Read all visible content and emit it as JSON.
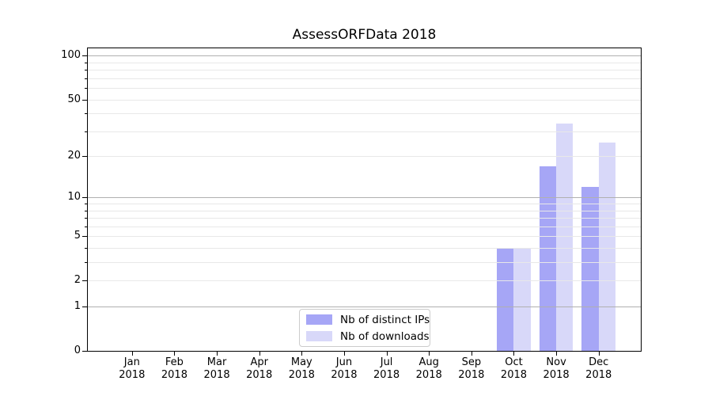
{
  "chart_data": {
    "type": "bar",
    "title": "AssessORFData 2018",
    "categories": [
      "Jan",
      "Feb",
      "Mar",
      "Apr",
      "May",
      "Jun",
      "Jul",
      "Aug",
      "Sep",
      "Oct",
      "Nov",
      "Dec"
    ],
    "category_year": "2018",
    "series": [
      {
        "name": "Nb of distinct IPs",
        "color": "#a6a6f6",
        "values": [
          0,
          0,
          0,
          0,
          0,
          0,
          0,
          0,
          0,
          4,
          17,
          12
        ]
      },
      {
        "name": "Nb of downloads",
        "color": "#d8d8f9",
        "values": [
          0,
          0,
          0,
          0,
          0,
          0,
          0,
          0,
          0,
          4,
          34,
          25
        ]
      }
    ],
    "y_axis": {
      "scale": "log10(value+1)",
      "tick_values": [
        0,
        1,
        2,
        5,
        10,
        20,
        50,
        100
      ],
      "tick_labels": [
        "0",
        "1",
        "2",
        "5",
        "10",
        "20",
        "50",
        "100"
      ],
      "major_grid_values": [
        1,
        10,
        100
      ],
      "minor_grid_values": [
        2,
        3,
        4,
        5,
        6,
        7,
        8,
        9,
        20,
        30,
        40,
        50,
        60,
        70,
        80,
        90
      ],
      "range_max": 112
    },
    "legend": {
      "position": "lower center"
    },
    "grid": true,
    "colors": {
      "major_grid": "#b0b0b0",
      "minor_grid": "#e8e8e8",
      "spine": "#000000",
      "text": "#000000",
      "background": "#ffffff"
    }
  }
}
